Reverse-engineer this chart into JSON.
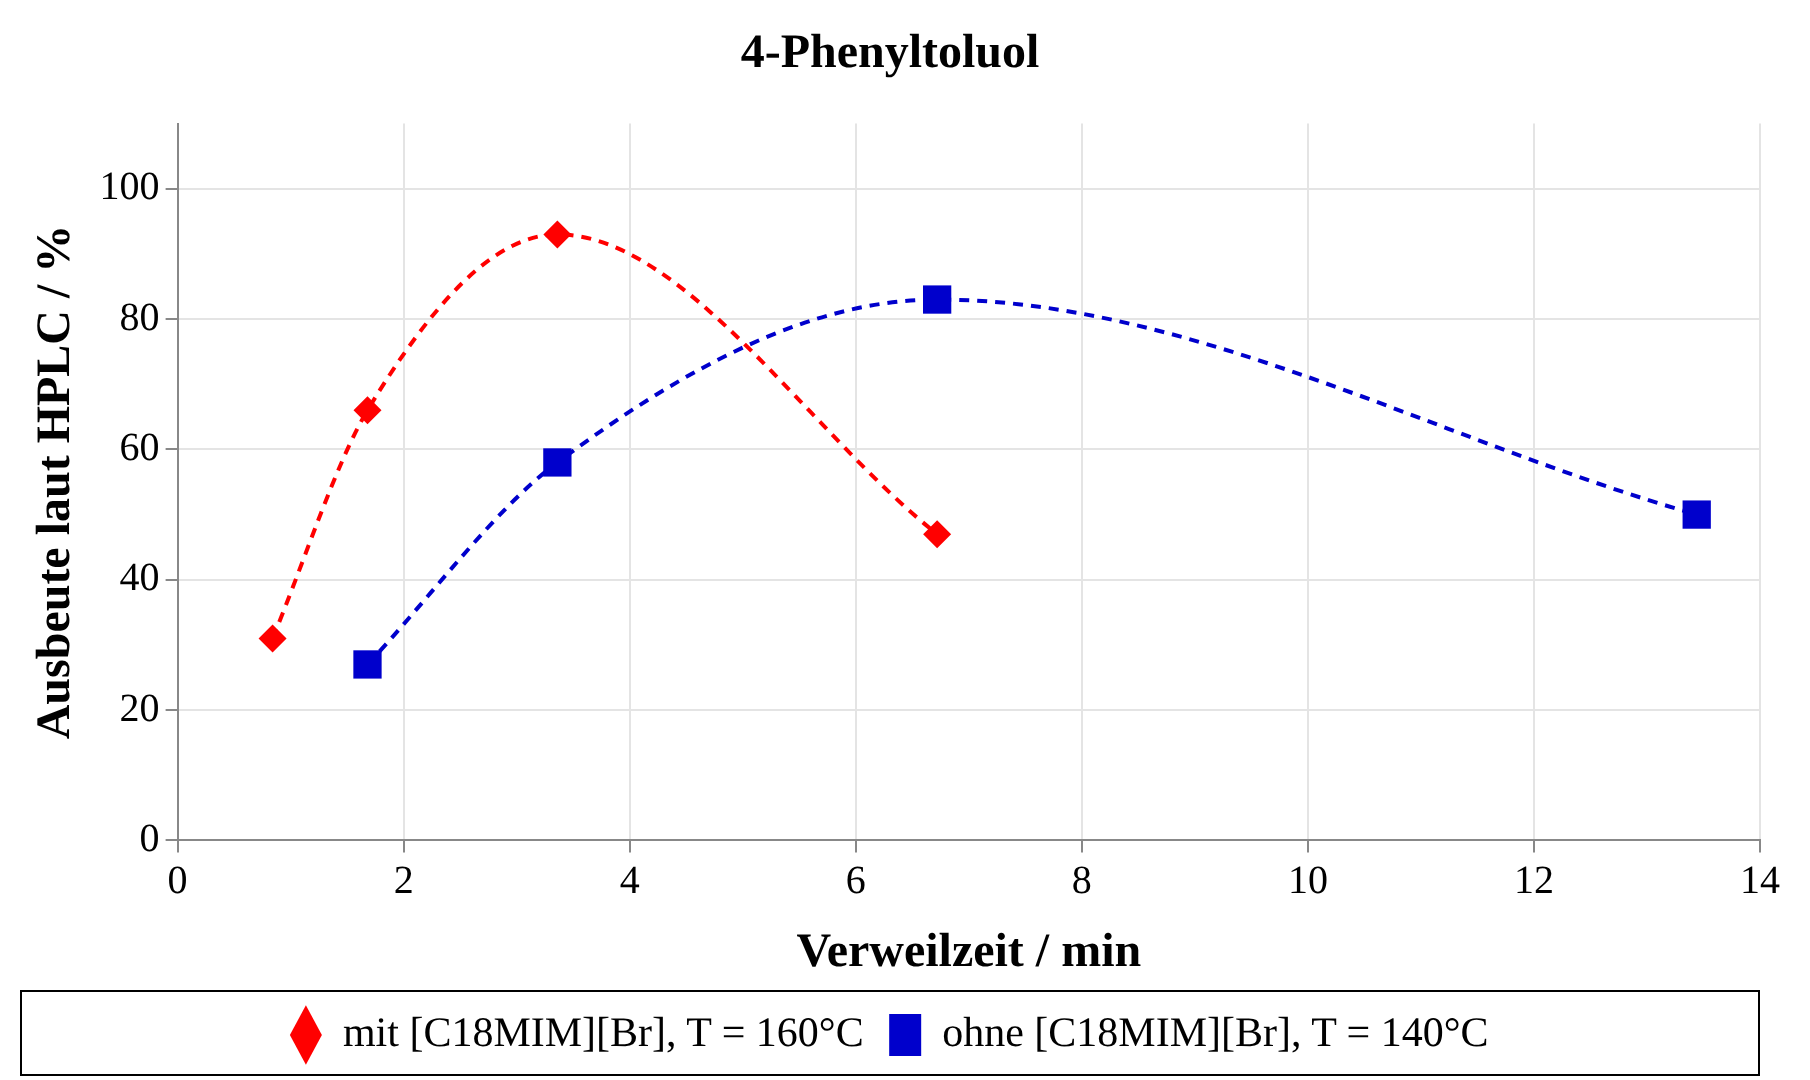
{
  "chart_data": {
    "type": "line",
    "title": "4-Phenyltoluol",
    "xlabel": "Verweilzeit / min",
    "ylabel": "Ausbeute laut HPLC / %",
    "xlim": [
      0,
      14
    ],
    "xticks": [
      0,
      2,
      4,
      6,
      8,
      10,
      12,
      14
    ],
    "ylim": [
      0,
      110
    ],
    "yticks": [
      0,
      20,
      40,
      60,
      80,
      100
    ],
    "grid": true,
    "legend": "bottom",
    "line_style": "dashed",
    "series": [
      {
        "name": "mit [C18MIM][Br], T = 160°C",
        "color": "#ff0000",
        "marker": "diamond",
        "x": [
          0.84,
          1.68,
          3.36,
          6.72
        ],
        "values": [
          31,
          66,
          93,
          47
        ]
      },
      {
        "name": "ohne [C18MIM][Br], T = 140°C",
        "color": "#0000cc",
        "marker": "square",
        "x": [
          1.68,
          3.36,
          6.72,
          13.44
        ],
        "values": [
          27,
          58,
          83,
          50
        ]
      }
    ]
  }
}
